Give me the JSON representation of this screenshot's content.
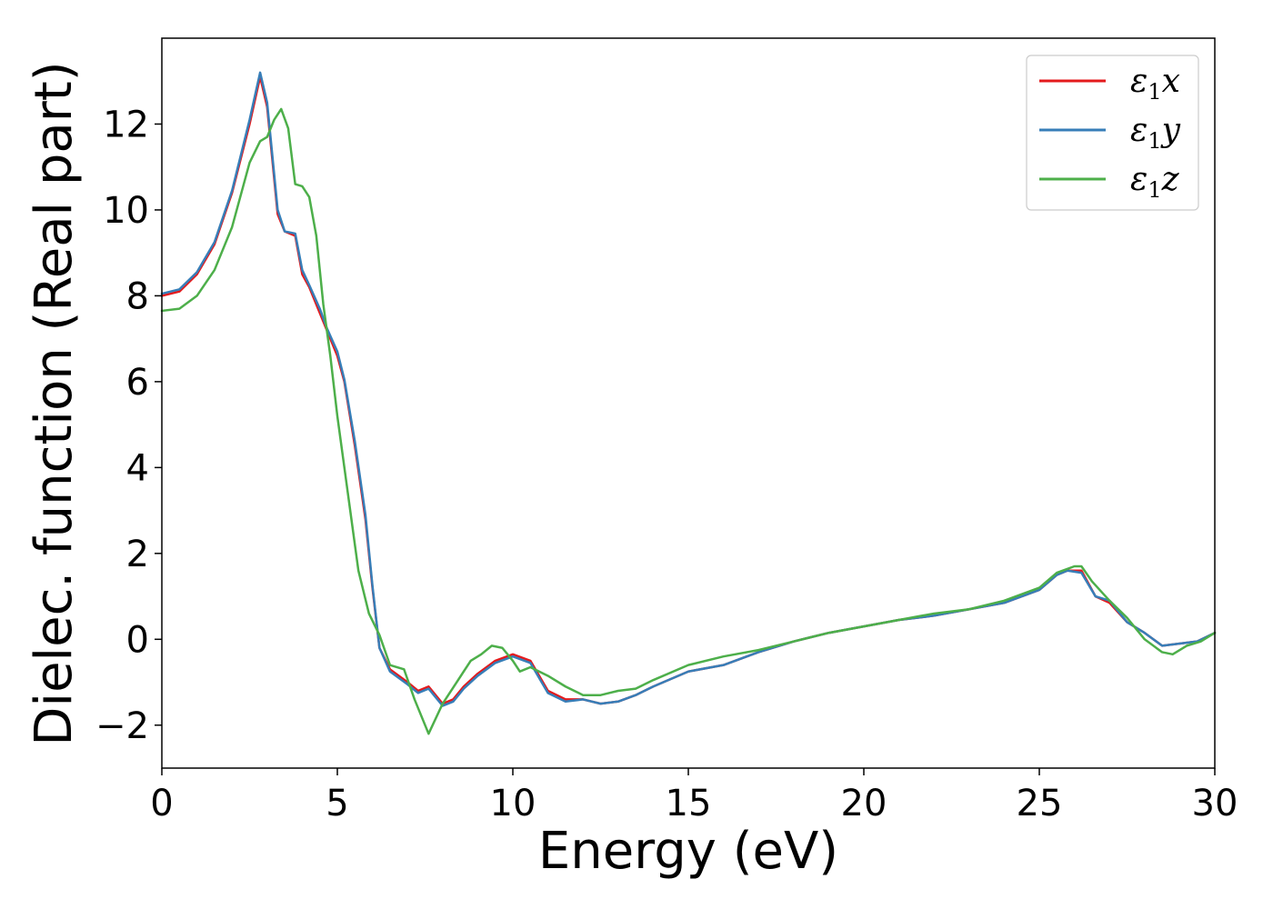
{
  "chart_data": {
    "type": "line",
    "title": "",
    "xlabel": "Energy (eV)",
    "ylabel": "Dielec. function (Real part)",
    "xlim": [
      0,
      30
    ],
    "ylim": [
      -3,
      14
    ],
    "xticks": [
      0,
      5,
      10,
      15,
      20,
      25,
      30
    ],
    "xtick_labels": [
      "0",
      "5",
      "10",
      "15",
      "20",
      "25",
      "30"
    ],
    "yticks": [
      -2,
      0,
      2,
      4,
      6,
      8,
      10,
      12
    ],
    "ytick_labels": [
      "−2",
      "0",
      "2",
      "4",
      "6",
      "8",
      "10",
      "12"
    ],
    "grid": false,
    "legend_position": "top-right",
    "series": [
      {
        "name": "ε₁x",
        "legend": {
          "symbol": "ε",
          "sub": "1",
          "var": "x"
        },
        "color": "#e41a1c",
        "x": [
          0,
          0.5,
          1.0,
          1.5,
          2.0,
          2.5,
          2.8,
          3.0,
          3.3,
          3.5,
          3.8,
          4.0,
          4.2,
          4.5,
          4.7,
          5.0,
          5.2,
          5.5,
          5.8,
          6.0,
          6.2,
          6.5,
          7.0,
          7.3,
          7.6,
          8.0,
          8.3,
          8.6,
          9.0,
          9.5,
          10.0,
          10.5,
          11.0,
          11.5,
          12.0,
          12.5,
          13.0,
          13.5,
          14.0,
          15.0,
          16.0,
          17.0,
          18.0,
          19.0,
          20.0,
          21.0,
          22.0,
          23.0,
          24.0,
          25.0,
          25.5,
          25.8,
          26.2,
          26.6,
          27.0,
          27.5,
          28.0,
          28.5,
          29.0,
          29.5,
          30.0
        ],
        "y": [
          8.0,
          8.1,
          8.5,
          9.2,
          10.4,
          12.0,
          13.1,
          12.4,
          9.9,
          9.5,
          9.4,
          8.5,
          8.2,
          7.6,
          7.2,
          6.6,
          6.0,
          4.5,
          2.8,
          1.2,
          -0.2,
          -0.7,
          -1.0,
          -1.2,
          -1.1,
          -1.5,
          -1.4,
          -1.1,
          -0.8,
          -0.5,
          -0.35,
          -0.5,
          -1.2,
          -1.4,
          -1.4,
          -1.5,
          -1.45,
          -1.3,
          -1.1,
          -0.75,
          -0.6,
          -0.3,
          -0.05,
          0.15,
          0.3,
          0.45,
          0.55,
          0.7,
          0.85,
          1.15,
          1.5,
          1.6,
          1.6,
          1.0,
          0.85,
          0.4,
          0.15,
          -0.15,
          -0.1,
          -0.05,
          0.15
        ]
      },
      {
        "name": "ε₁y",
        "legend": {
          "symbol": "ε",
          "sub": "1",
          "var": "y"
        },
        "color": "#377eb8",
        "x": [
          0,
          0.5,
          1.0,
          1.5,
          2.0,
          2.5,
          2.8,
          3.0,
          3.3,
          3.5,
          3.8,
          4.0,
          4.2,
          4.5,
          4.7,
          5.0,
          5.2,
          5.5,
          5.8,
          6.0,
          6.2,
          6.5,
          7.0,
          7.3,
          7.6,
          8.0,
          8.3,
          8.6,
          9.0,
          9.5,
          10.0,
          10.5,
          11.0,
          11.5,
          12.0,
          12.5,
          13.0,
          13.5,
          14.0,
          15.0,
          16.0,
          17.0,
          18.0,
          19.0,
          20.0,
          21.0,
          22.0,
          23.0,
          24.0,
          25.0,
          25.5,
          25.8,
          26.2,
          26.6,
          27.0,
          27.5,
          28.0,
          28.5,
          29.0,
          29.5,
          30.0
        ],
        "y": [
          8.05,
          8.15,
          8.55,
          9.25,
          10.45,
          12.1,
          13.2,
          12.5,
          10.0,
          9.5,
          9.45,
          8.6,
          8.25,
          7.7,
          7.25,
          6.7,
          6.05,
          4.6,
          2.9,
          1.25,
          -0.2,
          -0.75,
          -1.05,
          -1.25,
          -1.15,
          -1.55,
          -1.45,
          -1.15,
          -0.85,
          -0.55,
          -0.4,
          -0.55,
          -1.25,
          -1.45,
          -1.4,
          -1.5,
          -1.45,
          -1.3,
          -1.1,
          -0.75,
          -0.6,
          -0.3,
          -0.05,
          0.15,
          0.3,
          0.45,
          0.55,
          0.7,
          0.85,
          1.15,
          1.5,
          1.6,
          1.55,
          1.0,
          0.9,
          0.4,
          0.15,
          -0.15,
          -0.1,
          -0.05,
          0.15
        ]
      },
      {
        "name": "ε₁z",
        "legend": {
          "symbol": "ε",
          "sub": "1",
          "var": "z"
        },
        "color": "#4daf4a",
        "x": [
          0,
          0.5,
          1.0,
          1.5,
          2.0,
          2.5,
          2.8,
          3.0,
          3.2,
          3.4,
          3.6,
          3.8,
          4.0,
          4.2,
          4.4,
          4.6,
          4.8,
          5.0,
          5.3,
          5.6,
          5.9,
          6.2,
          6.5,
          6.9,
          7.2,
          7.6,
          8.0,
          8.4,
          8.8,
          9.1,
          9.4,
          9.7,
          10.0,
          10.2,
          10.5,
          11.0,
          11.5,
          12.0,
          12.5,
          13.0,
          13.5,
          14.0,
          15.0,
          16.0,
          17.0,
          18.0,
          19.0,
          20.0,
          21.0,
          22.0,
          23.0,
          24.0,
          25.0,
          25.5,
          26.0,
          26.2,
          26.5,
          27.0,
          27.5,
          28.0,
          28.5,
          28.8,
          29.2,
          29.6,
          30.0
        ],
        "y": [
          7.65,
          7.7,
          8.0,
          8.6,
          9.6,
          11.1,
          11.6,
          11.7,
          12.1,
          12.35,
          11.9,
          10.6,
          10.55,
          10.3,
          9.4,
          7.8,
          6.6,
          5.2,
          3.4,
          1.6,
          0.6,
          0.1,
          -0.6,
          -0.7,
          -1.4,
          -2.2,
          -1.5,
          -1.0,
          -0.5,
          -0.35,
          -0.15,
          -0.2,
          -0.5,
          -0.75,
          -0.65,
          -0.85,
          -1.1,
          -1.3,
          -1.3,
          -1.2,
          -1.15,
          -0.95,
          -0.6,
          -0.4,
          -0.25,
          -0.05,
          0.15,
          0.3,
          0.45,
          0.6,
          0.7,
          0.9,
          1.2,
          1.55,
          1.7,
          1.7,
          1.35,
          0.9,
          0.5,
          0.0,
          -0.3,
          -0.35,
          -0.15,
          -0.05,
          0.15
        ]
      }
    ]
  }
}
